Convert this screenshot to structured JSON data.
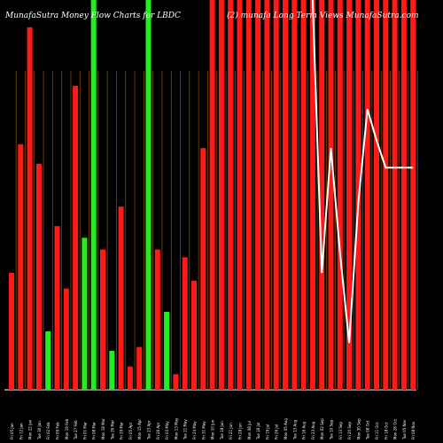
{
  "chart_data": {
    "type": "bar",
    "title": "MunafaSutra  Money Flow  Charts for LBDC",
    "subtitle": "(2) munafa Long Term Views MunafaSutra.com",
    "ylim": [
      0,
      100
    ],
    "categories": [
      "Fri 05 Jan",
      "Fri 12 Jan",
      "Mon 22 Jan",
      "Tue 30 Jan",
      "Fri 02 Feb",
      "Fri 09 Feb",
      "Mon 19 Feb",
      "Tue 27 Feb",
      "Fri 01 Mar",
      "Fri 08 Mar",
      "Mon 18 Mar",
      "Tue 26 Mar",
      "Fri 29 Mar",
      "Fri 05 Apr",
      "Mon 15 Apr",
      "Tue 23 Apr",
      "Fri 26 Apr",
      "Fri 03 May",
      "Mon 13 May",
      "Tue 21 May",
      "Fri 24 May",
      "Fri 31 May",
      "Mon 10 Jun",
      "Tue 18 Jun",
      "Fri 21 Jun",
      "Fri 28 Jun",
      "Mon 08 Jul",
      "Tue 16 Jul",
      "Fri 19 Jul",
      "Fri 26 Jul",
      "Mon 05 Aug",
      "Tue 13 Aug",
      "Fri 16 Aug",
      "Fri 23 Aug",
      "Mon 02 Sep",
      "Tue 10 Sep",
      "Fri 13 Sep",
      "Fri 20 Sep",
      "Mon 30 Sep",
      "Tue 08 Oct",
      "Fri 11 Oct",
      "Fri 18 Oct",
      "Mon 28 Oct",
      "Tue 05 Nov",
      "Fri 08 Nov"
    ],
    "series": [
      {
        "values": [
          30,
          63,
          93,
          58,
          15,
          42,
          26,
          78,
          39,
          100,
          36,
          10,
          47,
          6,
          11,
          100,
          36,
          20,
          4,
          34,
          28,
          62,
          100,
          100,
          100,
          100,
          100,
          100,
          100,
          100,
          100,
          100,
          100,
          100,
          100,
          100,
          100,
          100,
          100,
          100,
          100,
          100,
          100,
          100,
          100
        ],
        "colors": [
          "red",
          "red",
          "red",
          "red",
          "green",
          "red",
          "red",
          "red",
          "green",
          "green",
          "red",
          "green",
          "red",
          "red",
          "red",
          "green",
          "red",
          "green",
          "red",
          "red",
          "red",
          "red",
          "red",
          "red",
          "red",
          "red",
          "red",
          "red",
          "red",
          "red",
          "red",
          "red",
          "red",
          "red",
          "red",
          "red",
          "red",
          "red",
          "red",
          "red",
          "red",
          "red",
          "red",
          "red",
          "red"
        ]
      }
    ],
    "line_values": [
      null,
      null,
      null,
      null,
      null,
      null,
      null,
      null,
      null,
      null,
      null,
      null,
      null,
      null,
      null,
      null,
      null,
      null,
      null,
      null,
      null,
      null,
      null,
      null,
      null,
      null,
      null,
      null,
      null,
      null,
      null,
      null,
      null,
      100,
      30,
      62,
      35,
      12,
      48,
      72,
      64,
      57,
      57,
      57,
      57
    ]
  }
}
